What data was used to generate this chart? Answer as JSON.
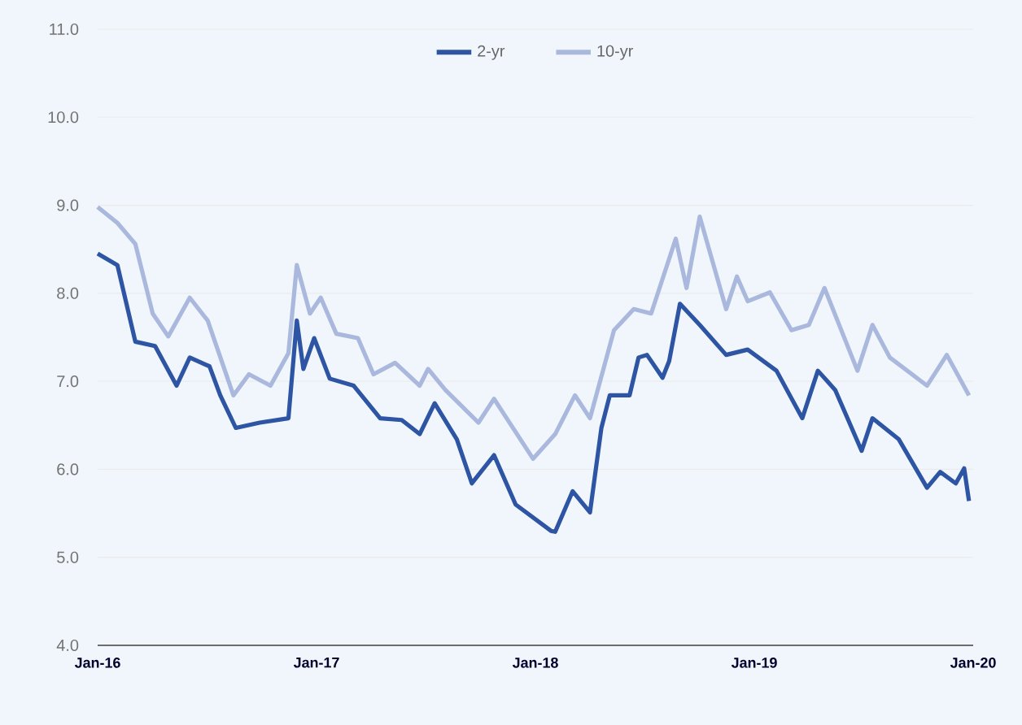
{
  "chart_data": {
    "type": "line",
    "xlim": [
      "2016-01-01",
      "2020-01-01"
    ],
    "ylim": [
      4,
      11
    ],
    "xticks": [
      {
        "value": "2016-01-01",
        "label": "Jan-16"
      },
      {
        "value": "2017-01-01",
        "label": "Jan-17"
      },
      {
        "value": "2018-01-01",
        "label": "Jan-18"
      },
      {
        "value": "2019-01-01",
        "label": "Jan-19"
      },
      {
        "value": "2020-01-01",
        "label": "Jan-20"
      }
    ],
    "yticks": [
      {
        "value": 4,
        "label": "4.0"
      },
      {
        "value": 5,
        "label": "5.0"
      },
      {
        "value": 6,
        "label": "6.0"
      },
      {
        "value": 7,
        "label": "7.0"
      },
      {
        "value": 8,
        "label": "8.0"
      },
      {
        "value": 9,
        "label": "9.0"
      },
      {
        "value": 10,
        "label": "10.0"
      },
      {
        "value": 11,
        "label": "11.0"
      }
    ],
    "grid": "y",
    "legend": "top",
    "line_style": "solid",
    "marker": "none",
    "series": [
      {
        "name": "2-yr",
        "color": "#2e55a3",
        "x": [
          "2016-01-01",
          "2016-02-03",
          "2016-03-04",
          "2016-04-06",
          "2016-05-12",
          "2016-06-03",
          "2016-07-06",
          "2016-07-24",
          "2016-08-19",
          "2016-09-28",
          "2016-11-15",
          "2016-11-29",
          "2016-12-10",
          "2016-12-28",
          "2017-01-23",
          "2017-03-04",
          "2017-04-17",
          "2017-05-23",
          "2017-06-22",
          "2017-07-17",
          "2017-08-23",
          "2017-09-17",
          "2017-10-24",
          "2017-11-29",
          "2018-01-27",
          "2018-02-03",
          "2018-03-04",
          "2018-04-02",
          "2018-04-21",
          "2018-05-05",
          "2018-06-07",
          "2018-06-22",
          "2018-07-06",
          "2018-08-01",
          "2018-08-12",
          "2018-08-30",
          "2018-10-02",
          "2018-11-15",
          "2018-12-21",
          "2019-02-07",
          "2019-03-22",
          "2019-04-17",
          "2019-05-16",
          "2019-06-29",
          "2019-07-17",
          "2019-08-30",
          "2019-10-16",
          "2019-11-07",
          "2019-12-03",
          "2019-12-17",
          "2019-12-25"
        ],
        "values": [
          8.45,
          8.32,
          7.45,
          7.4,
          6.95,
          7.27,
          7.17,
          6.84,
          6.47,
          6.53,
          6.58,
          7.69,
          7.14,
          7.49,
          7.03,
          6.95,
          6.58,
          6.56,
          6.4,
          6.75,
          6.34,
          5.84,
          6.16,
          5.6,
          5.3,
          5.29,
          5.75,
          5.51,
          6.47,
          6.84,
          6.84,
          7.27,
          7.3,
          7.04,
          7.23,
          7.88,
          7.64,
          7.3,
          7.36,
          7.12,
          6.58,
          7.12,
          6.9,
          6.21,
          6.58,
          6.34,
          5.79,
          5.97,
          5.84,
          6.01,
          5.64
        ]
      },
      {
        "name": "10-yr",
        "color": "#a9b8dc",
        "x": [
          "2016-01-01",
          "2016-02-03",
          "2016-03-04",
          "2016-04-02",
          "2016-04-28",
          "2016-06-03",
          "2016-07-03",
          "2016-08-15",
          "2016-09-10",
          "2016-10-16",
          "2016-11-15",
          "2016-11-29",
          "2016-12-21",
          "2017-01-08",
          "2017-02-03",
          "2017-03-11",
          "2017-04-06",
          "2017-05-12",
          "2017-06-22",
          "2017-07-06",
          "2017-08-04",
          "2017-09-28",
          "2017-10-24",
          "2017-12-28",
          "2018-02-03",
          "2018-03-08",
          "2018-04-02",
          "2018-05-12",
          "2018-06-14",
          "2018-07-13",
          "2018-08-23",
          "2018-09-10",
          "2018-10-02",
          "2018-11-15",
          "2018-12-03",
          "2018-12-21",
          "2019-01-27",
          "2019-03-04",
          "2019-04-02",
          "2019-04-28",
          "2019-06-22",
          "2019-07-17",
          "2019-08-15",
          "2019-10-16",
          "2019-11-18",
          "2019-12-25"
        ],
        "values": [
          8.98,
          8.8,
          8.56,
          7.77,
          7.51,
          7.95,
          7.69,
          6.84,
          7.08,
          6.95,
          7.32,
          8.32,
          7.77,
          7.95,
          7.54,
          7.49,
          7.08,
          7.21,
          6.95,
          7.14,
          6.9,
          6.53,
          6.8,
          6.12,
          6.4,
          6.84,
          6.58,
          7.58,
          7.82,
          7.77,
          8.62,
          8.06,
          8.87,
          7.82,
          8.19,
          7.91,
          8.01,
          7.58,
          7.64,
          8.06,
          7.12,
          7.64,
          7.27,
          6.95,
          7.3,
          6.84
        ]
      }
    ]
  }
}
